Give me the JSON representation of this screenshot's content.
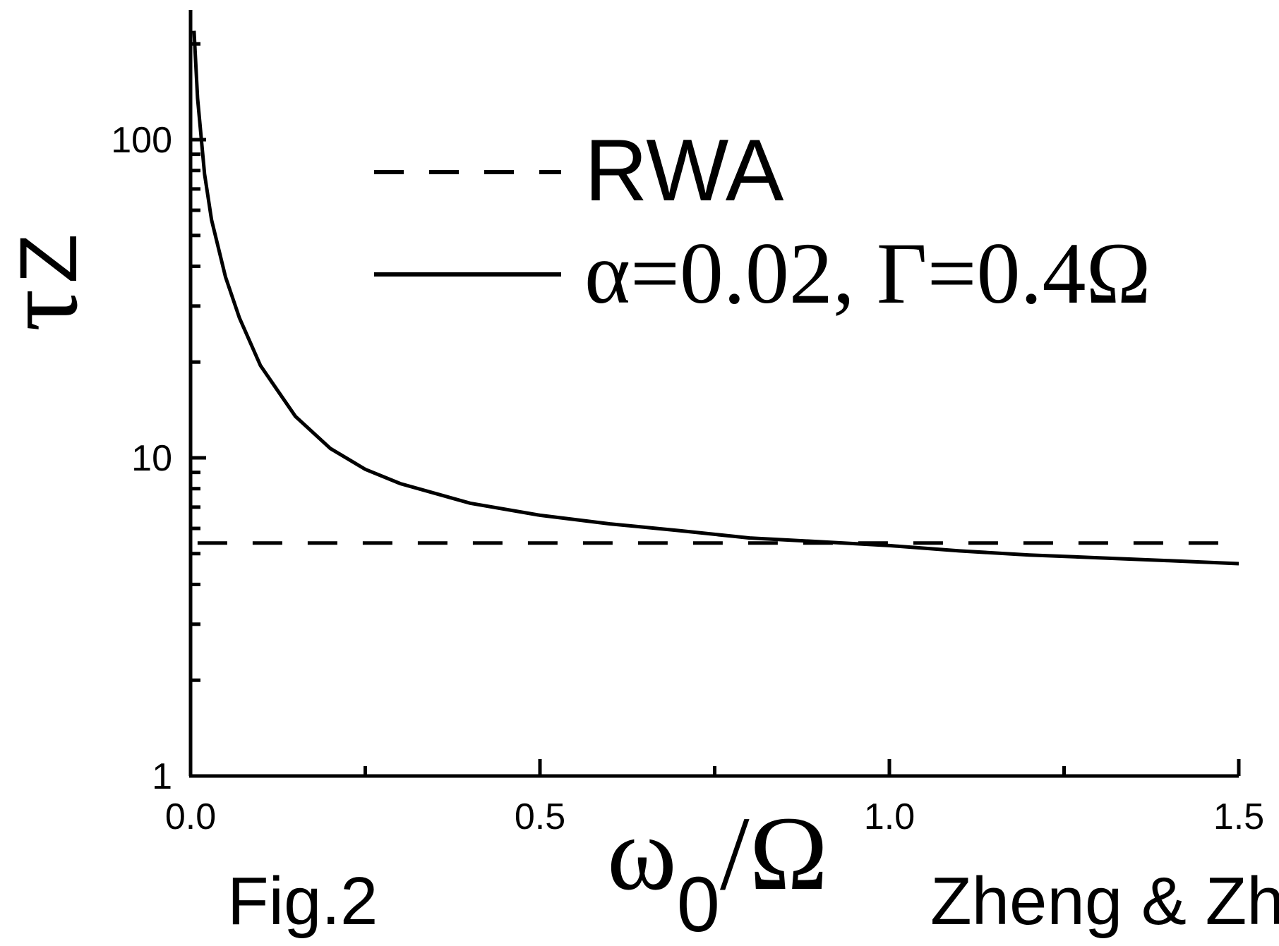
{
  "chart_data": {
    "type": "line",
    "xlabel": "ω0/Ω",
    "ylabel": "τZ",
    "xlim": [
      0.0,
      1.5
    ],
    "ylim": [
      1,
      250
    ],
    "yscale": "log",
    "grid": false,
    "legend_position": "top-right",
    "x_ticks": [
      "0.0",
      "0.5",
      "1.0",
      "1.5"
    ],
    "y_ticks": [
      "1",
      "10",
      "100"
    ],
    "series": [
      {
        "name": "RWA",
        "style": "dashed",
        "x": [
          0.01,
          1.5
        ],
        "y": [
          5.4,
          5.4
        ]
      },
      {
        "name": "α=0.02, Γ=0.4Ω",
        "style": "solid",
        "x": [
          0.005,
          0.01,
          0.02,
          0.03,
          0.05,
          0.07,
          0.1,
          0.15,
          0.2,
          0.25,
          0.3,
          0.4,
          0.5,
          0.6,
          0.7,
          0.8,
          0.9,
          1.0,
          1.1,
          1.2,
          1.3,
          1.4,
          1.5
        ],
        "y": [
          220,
          135,
          78,
          56,
          37,
          27.5,
          19.5,
          13.5,
          10.7,
          9.2,
          8.3,
          7.2,
          6.6,
          6.2,
          5.9,
          5.6,
          5.45,
          5.3,
          5.1,
          4.95,
          4.85,
          4.75,
          4.65
        ]
      }
    ],
    "legend": {
      "rwa": "RWA",
      "alpha": "α=0.02, ",
      "gamma": "Γ=0.4Ω"
    },
    "labels": {
      "y_tau": "τ",
      "y_sub": "Z",
      "x_omega": "ω",
      "x_sub": "0",
      "x_rest": "/Ω"
    },
    "captions": {
      "fig": "Fig.2",
      "authors": "Zheng & Zhu"
    }
  }
}
